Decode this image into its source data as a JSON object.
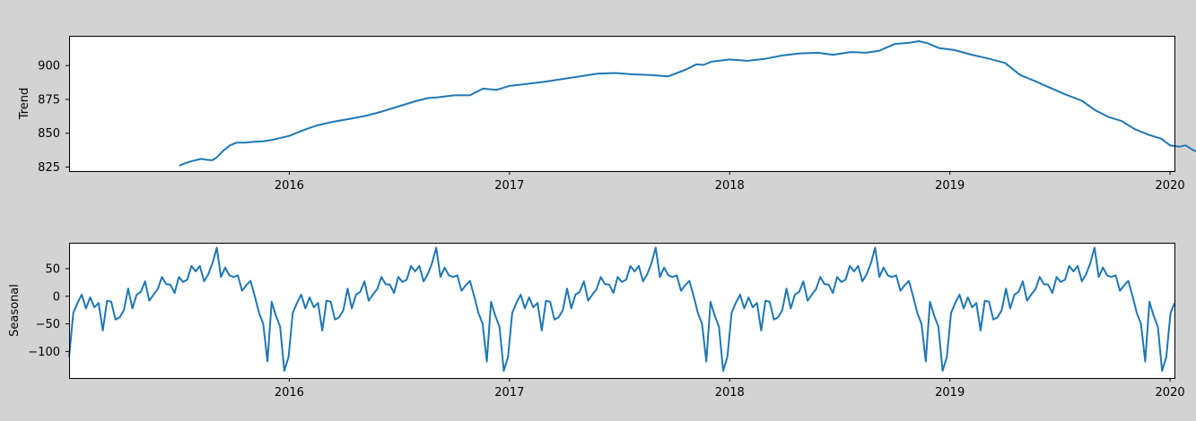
{
  "colors": {
    "figure_background": "#d3d3d3",
    "axes_background": "#ffffff",
    "line": "#1f77b4",
    "axis": "#000000"
  },
  "chart_data": [
    {
      "type": "line",
      "ylabel": "Trend",
      "xlim": [
        2015.0,
        2020.02
      ],
      "ylim": [
        822,
        922
      ],
      "x_ticks": [
        2016,
        2017,
        2018,
        2019,
        2020
      ],
      "x_tick_labels": [
        "2016",
        "2017",
        "2018",
        "2019",
        "2020"
      ],
      "y_ticks": [
        825,
        850,
        875,
        900
      ],
      "y_tick_labels": [
        "825",
        "850",
        "875",
        "900"
      ],
      "grid": false,
      "series": [
        {
          "points": [
            [
              2015.5,
              826
            ],
            [
              2015.53,
              828
            ],
            [
              2015.56,
              829.5
            ],
            [
              2015.6,
              831
            ],
            [
              2015.62,
              830.5
            ],
            [
              2015.65,
              830
            ],
            [
              2015.67,
              832
            ],
            [
              2015.7,
              837
            ],
            [
              2015.73,
              841
            ],
            [
              2015.76,
              843
            ],
            [
              2015.8,
              843
            ],
            [
              2015.83,
              843.5
            ],
            [
              2015.88,
              844
            ],
            [
              2015.92,
              845
            ],
            [
              2016.0,
              848
            ],
            [
              2016.06,
              852
            ],
            [
              2016.12,
              855.5
            ],
            [
              2016.2,
              858.5
            ],
            [
              2016.27,
              860.5
            ],
            [
              2016.35,
              863
            ],
            [
              2016.42,
              866
            ],
            [
              2016.5,
              870
            ],
            [
              2016.58,
              874
            ],
            [
              2016.63,
              876
            ],
            [
              2016.67,
              876.5
            ],
            [
              2016.75,
              878
            ],
            [
              2016.82,
              878
            ],
            [
              2016.88,
              883
            ],
            [
              2016.94,
              882
            ],
            [
              2017.0,
              885
            ],
            [
              2017.08,
              886.5
            ],
            [
              2017.16,
              888
            ],
            [
              2017.24,
              890
            ],
            [
              2017.32,
              892
            ],
            [
              2017.4,
              894
            ],
            [
              2017.48,
              894.5
            ],
            [
              2017.56,
              893.5
            ],
            [
              2017.64,
              893
            ],
            [
              2017.72,
              892
            ],
            [
              2017.8,
              897
            ],
            [
              2017.85,
              901
            ],
            [
              2017.88,
              900.5
            ],
            [
              2017.92,
              903
            ],
            [
              2018.0,
              904.5
            ],
            [
              2018.08,
              903.5
            ],
            [
              2018.16,
              905
            ],
            [
              2018.24,
              907.5
            ],
            [
              2018.32,
              909
            ],
            [
              2018.4,
              909.5
            ],
            [
              2018.47,
              908
            ],
            [
              2018.55,
              910
            ],
            [
              2018.62,
              909.5
            ],
            [
              2018.68,
              911
            ],
            [
              2018.75,
              916
            ],
            [
              2018.82,
              917
            ],
            [
              2018.86,
              918
            ],
            [
              2018.9,
              916.5
            ],
            [
              2018.95,
              913
            ],
            [
              2019.02,
              911.5
            ],
            [
              2019.1,
              908
            ],
            [
              2019.18,
              905
            ],
            [
              2019.25,
              902
            ],
            [
              2019.32,
              893
            ],
            [
              2019.38,
              889
            ],
            [
              2019.45,
              884
            ],
            [
              2019.52,
              879
            ],
            [
              2019.6,
              874
            ],
            [
              2019.66,
              867
            ],
            [
              2019.72,
              862
            ],
            [
              2019.78,
              859
            ],
            [
              2019.84,
              853
            ],
            [
              2019.9,
              849
            ],
            [
              2019.96,
              846
            ],
            [
              2020.0,
              841
            ],
            [
              2020.04,
              840
            ],
            [
              2020.07,
              841
            ],
            [
              2020.11,
              837
            ],
            [
              2020.15,
              836.5
            ],
            [
              2020.18,
              836
            ],
            [
              2020.2,
              835
            ]
          ]
        }
      ]
    },
    {
      "type": "line",
      "ylabel": "Seasonal",
      "xlim": [
        2015.0,
        2020.02
      ],
      "ylim": [
        -148,
        97
      ],
      "x_ticks": [
        2016,
        2017,
        2018,
        2019,
        2020
      ],
      "x_tick_labels": [
        "2016",
        "2017",
        "2018",
        "2019",
        "2020"
      ],
      "y_ticks": [
        -100,
        -50,
        0,
        50
      ],
      "y_tick_labels": [
        "−100",
        "−50",
        "0",
        "50"
      ],
      "grid": false,
      "period_weeks": 52,
      "series": [
        {
          "one_year_weekly_values": [
            -110,
            -30,
            -12,
            3,
            -22,
            -2,
            -20,
            -12,
            -62,
            -8,
            -10,
            -42,
            -38,
            -25,
            14,
            -22,
            3,
            8,
            27,
            -8,
            3,
            13,
            35,
            22,
            21,
            6,
            35,
            26,
            30,
            55,
            45,
            55,
            27,
            40,
            60,
            88,
            35,
            52,
            38,
            35,
            38,
            10,
            20,
            28,
            0,
            -30,
            -50,
            -118,
            -10,
            -35,
            -55,
            -135
          ]
        }
      ]
    }
  ]
}
